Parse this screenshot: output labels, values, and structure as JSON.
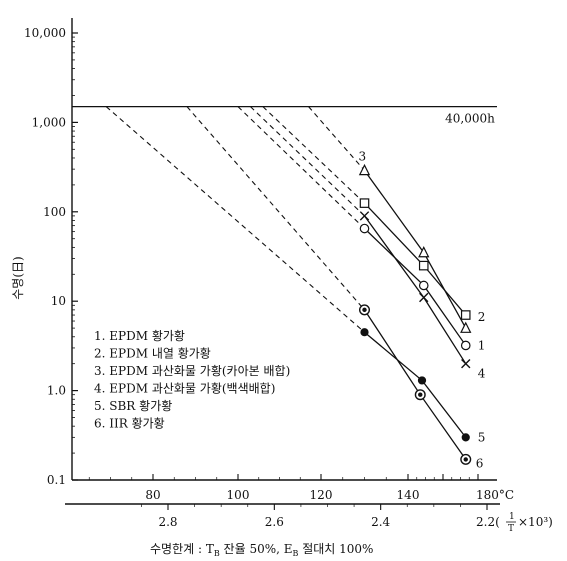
{
  "chart_data": {
    "type": "line",
    "title": "",
    "ylabel": "수명(日)",
    "yscale": "log",
    "ylim": [
      0.1,
      10000
    ],
    "ytick_labels": [
      "10,000",
      "1,000",
      "100",
      "10",
      "1.0",
      "0.1"
    ],
    "ytick_values": [
      10000,
      1000,
      100,
      10,
      1,
      0.1
    ],
    "xlabel_celsius_unit": "180°C",
    "xtick_labels_celsius": [
      "80",
      "100",
      "120",
      "140"
    ],
    "xtick_values_celsius": [
      80,
      100,
      120,
      140
    ],
    "xlim_celsius": [
      60,
      190
    ],
    "x2_label": "2.2(1/T × 10³)",
    "x2_label_num": "2.2(",
    "x2_label_frac_num": "1",
    "x2_label_frac_den": "T",
    "x2_label_rest": "×10³)",
    "x2tick_labels": [
      "2.8",
      "2.6",
      "2.4"
    ],
    "x2tick_values": [
      2.8,
      2.6,
      2.4
    ],
    "footnote": "수명한계 : T_B 잔율 50%, E_B 절대치 100%",
    "footnote_parts": [
      "수명한계 : T",
      "B",
      " 잔율 50%,  E",
      "B",
      " 절대치 100%"
    ],
    "reference_line": {
      "y": 1500,
      "label": "40,000h"
    },
    "series": [
      {
        "id": "1",
        "name": "EPDM 황가황",
        "marker": "circle-open",
        "points": [
          [
            130,
            65
          ],
          [
            149,
            15
          ],
          [
            173,
            3.2
          ]
        ],
        "extrap_from": 1500,
        "extrap_x": 100
      },
      {
        "id": "2",
        "name": "EPDM 내열 황가황",
        "marker": "square-open",
        "points": [
          [
            130,
            125
          ],
          [
            149,
            25
          ],
          [
            173,
            7
          ]
        ],
        "extrap_from": 1500,
        "extrap_x": 106
      },
      {
        "id": "3",
        "name": "EPDM 과산화물 가황(카아본 배합)",
        "marker": "triangle-open",
        "points": [
          [
            130,
            290
          ],
          [
            149,
            35
          ],
          [
            173,
            5
          ]
        ],
        "extrap_from": 1500,
        "extrap_x": 117
      },
      {
        "id": "4",
        "name": "EPDM 과산화물 가황(백색배합)",
        "marker": "x",
        "points": [
          [
            130,
            90
          ],
          [
            149,
            11
          ],
          [
            173,
            2
          ]
        ],
        "extrap_from": 1500,
        "extrap_x": 103
      },
      {
        "id": "5",
        "name": "SBR 황가황",
        "marker": "circle-filled",
        "points": [
          [
            130,
            4.5
          ],
          [
            148,
            1.3
          ],
          [
            173,
            0.3
          ]
        ],
        "extrap_from": 1500,
        "extrap_x": 69
      },
      {
        "id": "6",
        "name": "IIR 황가황",
        "marker": "circle-dot",
        "points": [
          [
            130,
            8
          ],
          [
            147,
            0.9
          ],
          [
            173,
            0.17
          ]
        ],
        "extrap_from": 1500,
        "extrap_x": 88
      }
    ]
  }
}
